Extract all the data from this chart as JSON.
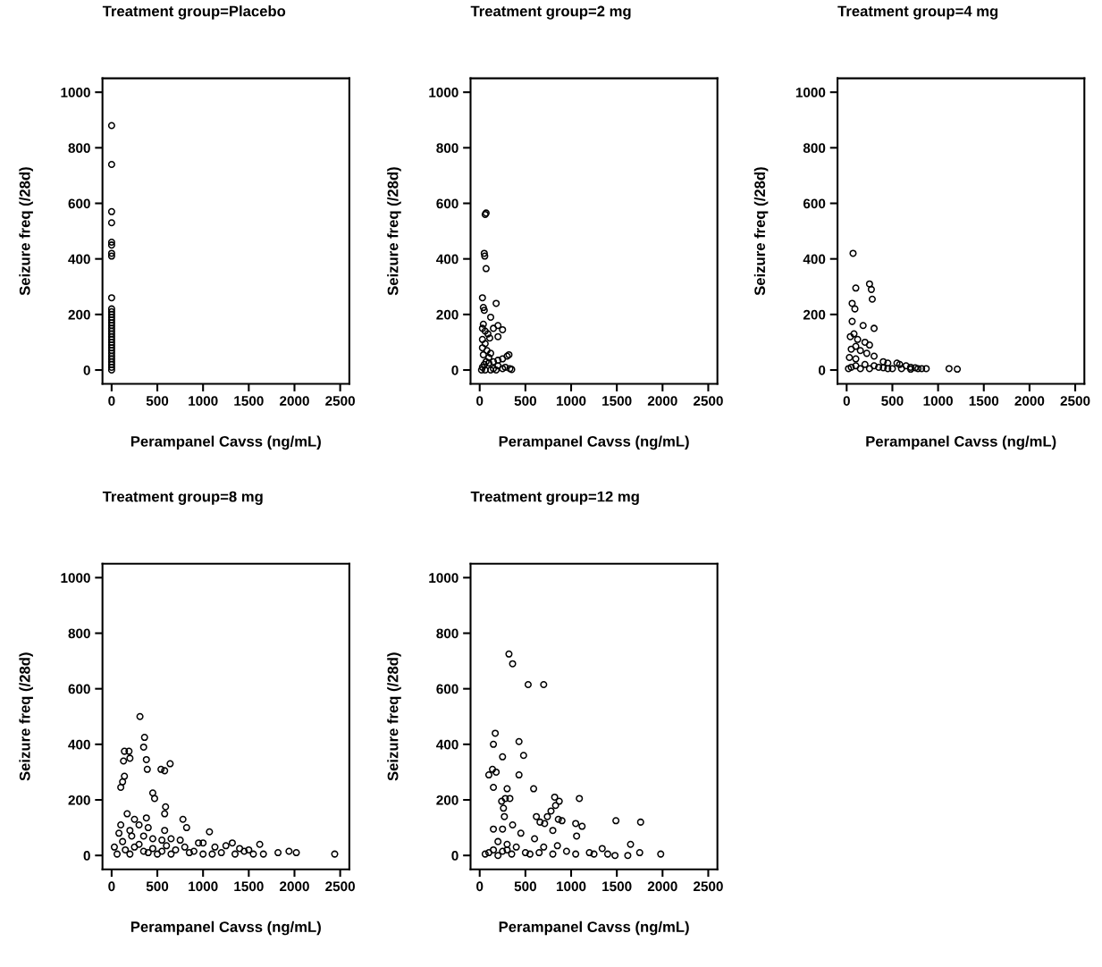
{
  "chart_data": [
    {
      "type": "scatter",
      "title": "Treatment group=Placebo",
      "xlabel": "Perampanel Cavss (ng/mL)",
      "ylabel": "Seizure freq (/28d)",
      "xlim": [
        -100,
        2600
      ],
      "ylim": [
        -50,
        1050
      ],
      "xticks": [
        0,
        500,
        1000,
        1500,
        2000,
        2500
      ],
      "yticks": [
        0,
        200,
        400,
        600,
        800,
        1000
      ],
      "marker": "circle",
      "grid": false,
      "series": [
        {
          "color": "#000000",
          "x": [
            0,
            0,
            0,
            0,
            0,
            0,
            0,
            0,
            0,
            0,
            0,
            0,
            0,
            0,
            0,
            0,
            0,
            0,
            0,
            0,
            0,
            0,
            0,
            0,
            0,
            0,
            0,
            0,
            0,
            0,
            0,
            0
          ],
          "values": [
            880,
            740,
            570,
            530,
            460,
            450,
            420,
            410,
            260,
            220,
            210,
            200,
            190,
            180,
            170,
            160,
            150,
            140,
            130,
            120,
            110,
            100,
            90,
            80,
            70,
            60,
            50,
            40,
            30,
            20,
            10,
            0
          ]
        }
      ]
    },
    {
      "type": "scatter",
      "title": "Treatment group=2 mg",
      "xlabel": "Perampanel Cavss (ng/mL)",
      "ylabel": "Seizure freq (/28d)",
      "xlim": [
        -100,
        2600
      ],
      "ylim": [
        -50,
        1050
      ],
      "xticks": [
        0,
        500,
        1000,
        1500,
        2000,
        2500
      ],
      "yticks": [
        0,
        200,
        400,
        600,
        800,
        1000
      ],
      "marker": "circle",
      "grid": false,
      "series": [
        {
          "color": "#000000",
          "x": [
            70,
            60,
            50,
            55,
            70,
            30,
            40,
            50,
            180,
            120,
            40,
            30,
            60,
            90,
            150,
            200,
            250,
            200,
            110,
            30,
            60,
            30,
            80,
            120,
            320,
            300,
            250,
            200,
            150,
            100,
            50,
            30,
            150,
            250,
            330,
            350,
            200,
            100,
            20,
            60,
            120,
            180,
            280,
            40,
            70
          ],
          "values": [
            565,
            560,
            420,
            410,
            365,
            260,
            225,
            215,
            240,
            190,
            165,
            150,
            140,
            130,
            150,
            160,
            145,
            120,
            115,
            110,
            95,
            80,
            70,
            60,
            55,
            50,
            40,
            35,
            30,
            25,
            20,
            10,
            5,
            5,
            5,
            2,
            15,
            45,
            0,
            0,
            0,
            0,
            10,
            55,
            30
          ]
        }
      ]
    },
    {
      "type": "scatter",
      "title": "Treatment group=4 mg",
      "xlabel": "Perampanel Cavss (ng/mL)",
      "ylabel": "Seizure freq (/28d)",
      "xlim": [
        -100,
        2600
      ],
      "ylim": [
        -50,
        1050
      ],
      "xticks": [
        0,
        500,
        1000,
        1500,
        2000,
        2500
      ],
      "yticks": [
        0,
        200,
        400,
        600,
        800,
        1000
      ],
      "marker": "circle",
      "grid": false,
      "series": [
        {
          "color": "#000000",
          "x": [
            70,
            100,
            250,
            270,
            280,
            60,
            90,
            60,
            180,
            300,
            80,
            40,
            120,
            200,
            250,
            100,
            50,
            150,
            220,
            300,
            30,
            100,
            400,
            450,
            550,
            580,
            650,
            700,
            780,
            820,
            870,
            1120,
            1210,
            500,
            600,
            350,
            200,
            100,
            50,
            20,
            150,
            250,
            300,
            400,
            450,
            700,
            750
          ],
          "values": [
            420,
            295,
            310,
            290,
            255,
            240,
            220,
            175,
            160,
            150,
            130,
            120,
            110,
            100,
            90,
            85,
            75,
            70,
            60,
            50,
            45,
            40,
            30,
            25,
            25,
            20,
            15,
            10,
            5,
            5,
            5,
            5,
            3,
            5,
            5,
            10,
            20,
            15,
            10,
            5,
            5,
            5,
            15,
            8,
            5,
            3,
            8
          ]
        }
      ]
    },
    {
      "type": "scatter",
      "title": "Treatment group=8 mg",
      "xlabel": "Perampanel Cavss (ng/mL)",
      "ylabel": "Seizure freq (/28d)",
      "xlim": [
        -100,
        2600
      ],
      "ylim": [
        -50,
        1050
      ],
      "xticks": [
        0,
        500,
        1000,
        1500,
        2000,
        2500
      ],
      "yticks": [
        0,
        200,
        400,
        600,
        800,
        1000
      ],
      "marker": "circle",
      "grid": false,
      "series": [
        {
          "color": "#000000",
          "x": [
            310,
            360,
            350,
            380,
            390,
            140,
            190,
            200,
            130,
            140,
            120,
            100,
            450,
            470,
            540,
            580,
            640,
            590,
            580,
            780,
            820,
            580,
            1070,
            380,
            400,
            170,
            250,
            300,
            100,
            80,
            200,
            350,
            450,
            550,
            650,
            750,
            950,
            1000,
            1130,
            1250,
            1320,
            1400,
            1500,
            1620,
            1660,
            1820,
            1940,
            2020,
            2440,
            30,
            60,
            150,
            250,
            350,
            450,
            550,
            700,
            850,
            1000,
            1200,
            1350,
            1550,
            120,
            220,
            300,
            400,
            500,
            650,
            800,
            900,
            1100,
            1450,
            200,
            600
          ],
          "values": [
            500,
            425,
            390,
            345,
            310,
            375,
            375,
            350,
            340,
            285,
            265,
            245,
            225,
            205,
            310,
            305,
            330,
            175,
            150,
            130,
            100,
            90,
            85,
            135,
            100,
            150,
            130,
            110,
            110,
            80,
            90,
            70,
            60,
            55,
            60,
            55,
            45,
            45,
            30,
            35,
            45,
            25,
            20,
            40,
            5,
            10,
            15,
            10,
            5,
            30,
            5,
            20,
            30,
            15,
            25,
            15,
            20,
            10,
            5,
            10,
            5,
            5,
            50,
            70,
            40,
            10,
            5,
            5,
            30,
            15,
            5,
            15,
            5,
            35
          ]
        }
      ]
    },
    {
      "type": "scatter",
      "title": "Treatment group=12 mg",
      "xlabel": "Perampanel Cavss (ng/mL)",
      "ylabel": "Seizure freq (/28d)",
      "xlim": [
        -100,
        2600
      ],
      "ylim": [
        -50,
        1050
      ],
      "xticks": [
        0,
        500,
        1000,
        1500,
        2000,
        2500
      ],
      "yticks": [
        0,
        200,
        400,
        600,
        800,
        1000
      ],
      "marker": "circle",
      "grid": false,
      "series": [
        {
          "color": "#000000",
          "x": [
            320,
            360,
            530,
            700,
            170,
            150,
            430,
            480,
            250,
            100,
            140,
            180,
            430,
            150,
            300,
            590,
            280,
            330,
            240,
            260,
            270,
            820,
            870,
            1090,
            830,
            780,
            740,
            620,
            660,
            710,
            860,
            900,
            1050,
            1120,
            1490,
            1760,
            800,
            1060,
            1650,
            1750,
            1980,
            150,
            250,
            360,
            450,
            600,
            200,
            300,
            100,
            60,
            200,
            300,
            400,
            500,
            700,
            850,
            950,
            1050,
            1200,
            1340,
            1400,
            1480,
            1620,
            1250,
            550,
            650,
            800,
            350,
            250,
            150
          ],
          "values": [
            725,
            690,
            615,
            615,
            440,
            400,
            410,
            360,
            355,
            290,
            310,
            300,
            290,
            245,
            240,
            240,
            205,
            205,
            195,
            170,
            140,
            210,
            195,
            205,
            180,
            160,
            140,
            140,
            120,
            115,
            130,
            125,
            115,
            105,
            125,
            120,
            90,
            70,
            40,
            10,
            5,
            95,
            95,
            110,
            80,
            60,
            50,
            40,
            10,
            5,
            0,
            20,
            30,
            10,
            30,
            35,
            15,
            5,
            10,
            25,
            5,
            0,
            0,
            5,
            5,
            10,
            5,
            5,
            15,
            20
          ]
        }
      ]
    }
  ]
}
